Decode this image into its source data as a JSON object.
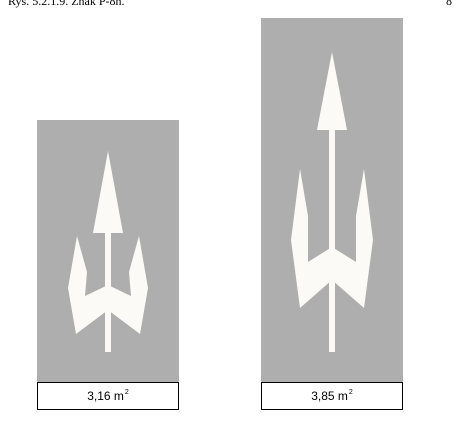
{
  "caption": {
    "text": "Rys. 5.2.1.9.   Znak P-8h.",
    "page_number": "8"
  },
  "signs": [
    {
      "area_value": "3,16 m",
      "area_exponent": "2"
    },
    {
      "area_value": "3,85 m",
      "area_exponent": "2"
    }
  ],
  "colors": {
    "sign_background": "#aeaeae",
    "arrow_fill": "#fbfaf6",
    "box_border": "#000000"
  }
}
